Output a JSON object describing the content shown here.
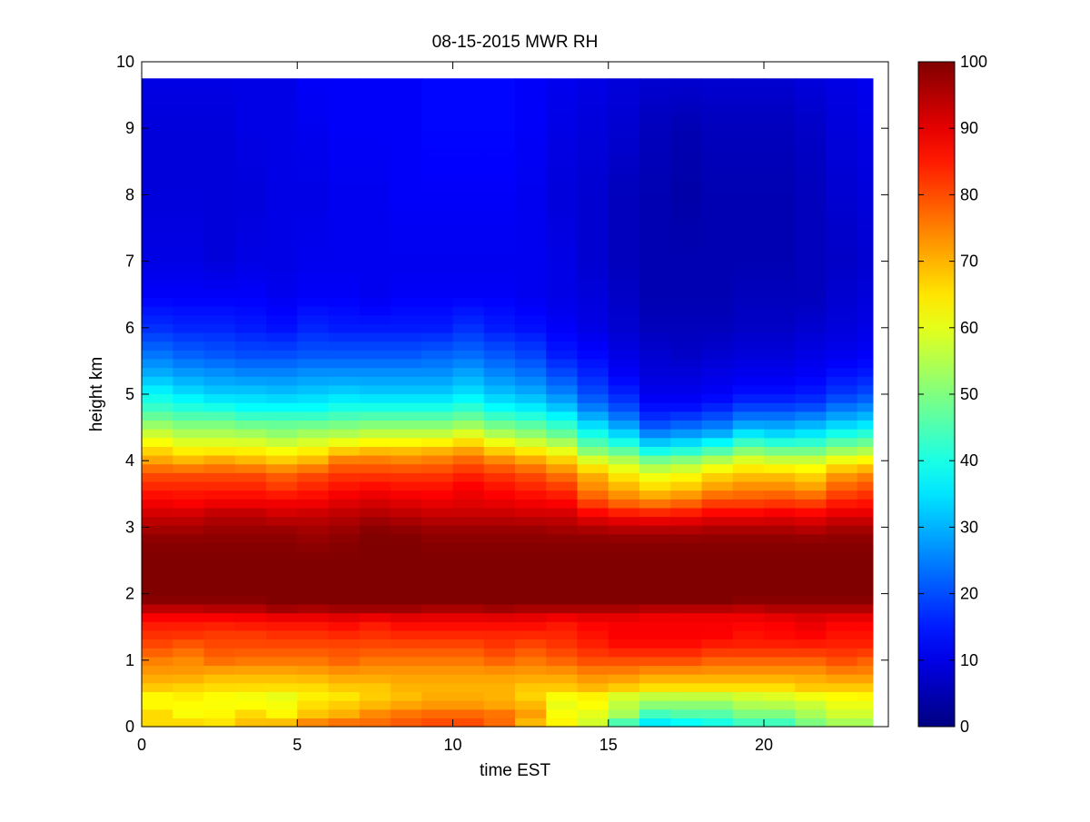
{
  "figure": {
    "background": "#ffffff"
  },
  "chart_data": {
    "type": "heatmap",
    "title": "08-15-2015 MWR RH",
    "xlabel": "time EST",
    "ylabel": "height km",
    "xlim": [
      0,
      24
    ],
    "ylim": [
      0,
      10
    ],
    "xticks": [
      0,
      5,
      10,
      15,
      20
    ],
    "yticks": [
      0,
      1,
      2,
      3,
      4,
      5,
      6,
      7,
      8,
      9,
      10
    ],
    "colorbar": {
      "min": 0,
      "max": 100,
      "ticks": [
        0,
        10,
        20,
        30,
        40,
        50,
        60,
        70,
        80,
        90,
        100
      ],
      "colormap": "jet"
    },
    "grid": false,
    "time_edges": [
      0,
      1,
      2,
      3,
      4,
      5,
      6,
      7,
      8,
      9,
      10,
      11,
      12,
      13,
      14,
      15,
      16,
      17,
      18,
      19,
      20,
      21,
      22,
      23,
      23.5
    ],
    "height_profile_km": [
      0,
      0.1,
      0.2,
      0.3,
      0.4,
      0.5,
      0.6,
      0.8,
      1.0,
      1.2,
      1.4,
      1.6,
      1.7,
      1.8,
      1.9,
      2.0,
      2.5,
      2.8,
      3.0,
      3.2,
      3.4,
      3.6,
      3.8,
      4.0,
      4.2,
      4.4,
      4.6,
      4.8,
      5.0,
      5.3,
      5.6,
      6.0,
      6.5,
      7.0,
      8.0,
      9.0,
      9.75
    ],
    "rh_profiles": [
      [
        62,
        68,
        66,
        63,
        63,
        63,
        68,
        72,
        75,
        80,
        83,
        86,
        90,
        95,
        99,
        100,
        100,
        99,
        96,
        92,
        88,
        84,
        80,
        72,
        65,
        58,
        50,
        43,
        38,
        30,
        24,
        17,
        12,
        10,
        9,
        9,
        10
      ],
      [
        70,
        64,
        62,
        62,
        64,
        64,
        67,
        72,
        74,
        78,
        83,
        86,
        90,
        95,
        99,
        100,
        100,
        99,
        96,
        92,
        87,
        84,
        80,
        70,
        62,
        55,
        48,
        41,
        35,
        28,
        22,
        16,
        12,
        10,
        9,
        9,
        10
      ],
      [
        63,
        66,
        63,
        62,
        62,
        63,
        66,
        70,
        77,
        80,
        82,
        86,
        90,
        96,
        99,
        100,
        100,
        99,
        97,
        94,
        88,
        84,
        80,
        72,
        62,
        55,
        48,
        40,
        33,
        27,
        21,
        16,
        12,
        9,
        9,
        9,
        10
      ],
      [
        62,
        72,
        66,
        63,
        61,
        62,
        66,
        70,
        76,
        80,
        82,
        87,
        90,
        96,
        99,
        100,
        100,
        99,
        97,
        94,
        88,
        84,
        80,
        70,
        62,
        54,
        46,
        38,
        33,
        26,
        20,
        15,
        12,
        10,
        9,
        10,
        10
      ],
      [
        70,
        68,
        63,
        62,
        61,
        60,
        66,
        70,
        76,
        80,
        83,
        87,
        92,
        98,
        100,
        100,
        100,
        99,
        97,
        92,
        88,
        82,
        78,
        68,
        60,
        52,
        46,
        38,
        32,
        26,
        20,
        14,
        11,
        10,
        10,
        10,
        10
      ],
      [
        78,
        72,
        68,
        66,
        65,
        63,
        66,
        71,
        76,
        80,
        83,
        87,
        92,
        97,
        100,
        100,
        100,
        98,
        96,
        93,
        88,
        84,
        80,
        70,
        62,
        54,
        46,
        38,
        33,
        27,
        21,
        16,
        12,
        11,
        10,
        11,
        12
      ],
      [
        78,
        75,
        70,
        68,
        66,
        64,
        68,
        72,
        78,
        80,
        84,
        88,
        93,
        98,
        100,
        100,
        100,
        99,
        97,
        94,
        90,
        86,
        82,
        76,
        65,
        55,
        47,
        40,
        34,
        27,
        21,
        15,
        12,
        11,
        11,
        12,
        12
      ],
      [
        78,
        76,
        74,
        70,
        68,
        67,
        68,
        72,
        76,
        80,
        83,
        86,
        93,
        98,
        100,
        100,
        100,
        100,
        99,
        95,
        91,
        87,
        82,
        76,
        67,
        57,
        48,
        40,
        33,
        27,
        21,
        15,
        11,
        11,
        11,
        12,
        12
      ],
      [
        80,
        78,
        76,
        72,
        70,
        68,
        70,
        72,
        76,
        80,
        84,
        88,
        93,
        98,
        100,
        100,
        100,
        100,
        98,
        94,
        90,
        86,
        82,
        75,
        67,
        57,
        48,
        40,
        33,
        27,
        21,
        15,
        12,
        11,
        12,
        12,
        12
      ],
      [
        80,
        80,
        77,
        73,
        72,
        70,
        70,
        72,
        76,
        80,
        84,
        88,
        92,
        97,
        100,
        100,
        100,
        99,
        97,
        93,
        89,
        86,
        82,
        76,
        68,
        57,
        48,
        40,
        33,
        27,
        22,
        15,
        12,
        11,
        12,
        13,
        13
      ],
      [
        80,
        80,
        77,
        73,
        72,
        70,
        70,
        72,
        76,
        80,
        84,
        88,
        92,
        97,
        100,
        100,
        100,
        99,
        97,
        93,
        90,
        88,
        84,
        78,
        70,
        60,
        50,
        42,
        35,
        29,
        23,
        17,
        12,
        11,
        12,
        13,
        13
      ],
      [
        75,
        78,
        76,
        72,
        70,
        70,
        70,
        72,
        78,
        82,
        84,
        88,
        93,
        98,
        100,
        100,
        100,
        99,
        97,
        93,
        89,
        86,
        82,
        75,
        65,
        55,
        46,
        38,
        32,
        26,
        21,
        15,
        12,
        11,
        12,
        13,
        13
      ],
      [
        60,
        74,
        72,
        70,
        68,
        66,
        68,
        72,
        76,
        80,
        84,
        88,
        92,
        97,
        100,
        100,
        100,
        99,
        97,
        92,
        88,
        84,
        80,
        72,
        62,
        52,
        44,
        36,
        30,
        24,
        19,
        14,
        11,
        11,
        11,
        12,
        12
      ],
      [
        62,
        64,
        62,
        60,
        62,
        62,
        68,
        72,
        78,
        82,
        84,
        86,
        92,
        97,
        100,
        100,
        100,
        99,
        96,
        92,
        87,
        82,
        76,
        68,
        58,
        48,
        40,
        32,
        26,
        20,
        15,
        12,
        10,
        10,
        9,
        10,
        11
      ],
      [
        55,
        60,
        60,
        62,
        63,
        64,
        70,
        74,
        80,
        84,
        86,
        88,
        92,
        97,
        100,
        100,
        100,
        99,
        95,
        88,
        80,
        74,
        70,
        60,
        48,
        40,
        32,
        25,
        20,
        16,
        13,
        10,
        9,
        8,
        8,
        9,
        10
      ],
      [
        40,
        48,
        54,
        56,
        57,
        60,
        68,
        74,
        80,
        86,
        88,
        88,
        92,
        97,
        100,
        100,
        100,
        99,
        94,
        86,
        76,
        70,
        64,
        56,
        44,
        34,
        26,
        20,
        16,
        12,
        10,
        8,
        7,
        6,
        6,
        8,
        9
      ],
      [
        32,
        38,
        44,
        50,
        54,
        58,
        66,
        72,
        80,
        86,
        88,
        88,
        90,
        96,
        100,
        100,
        100,
        99,
        94,
        85,
        74,
        66,
        60,
        50,
        36,
        26,
        18,
        14,
        11,
        9,
        8,
        6,
        5,
        5,
        5,
        6,
        8
      ],
      [
        34,
        40,
        46,
        50,
        54,
        58,
        66,
        72,
        80,
        86,
        88,
        88,
        90,
        96,
        100,
        100,
        100,
        99,
        94,
        86,
        76,
        68,
        62,
        52,
        38,
        28,
        20,
        14,
        11,
        9,
        7,
        6,
        5,
        5,
        4,
        5,
        8
      ],
      [
        36,
        42,
        46,
        50,
        54,
        58,
        66,
        72,
        78,
        84,
        88,
        88,
        90,
        96,
        100,
        100,
        100,
        99,
        95,
        88,
        80,
        72,
        66,
        56,
        42,
        30,
        22,
        16,
        12,
        10,
        8,
        6,
        5,
        5,
        5,
        6,
        8
      ],
      [
        40,
        46,
        50,
        54,
        56,
        60,
        66,
        72,
        78,
        84,
        86,
        88,
        90,
        95,
        99,
        100,
        100,
        99,
        95,
        88,
        80,
        74,
        68,
        60,
        48,
        36,
        26,
        19,
        14,
        11,
        9,
        7,
        6,
        5,
        5,
        6,
        8
      ],
      [
        40,
        46,
        50,
        54,
        58,
        60,
        66,
        72,
        78,
        84,
        87,
        88,
        92,
        96,
        99,
        100,
        100,
        99,
        95,
        89,
        81,
        74,
        68,
        58,
        46,
        34,
        26,
        19,
        14,
        11,
        9,
        7,
        6,
        5,
        5,
        6,
        8
      ],
      [
        46,
        52,
        54,
        56,
        60,
        62,
        68,
        72,
        78,
        84,
        88,
        90,
        92,
        96,
        99,
        100,
        100,
        99,
        94,
        88,
        80,
        72,
        66,
        58,
        46,
        36,
        28,
        20,
        15,
        12,
        10,
        8,
        6,
        6,
        6,
        7,
        9
      ],
      [
        50,
        56,
        58,
        60,
        62,
        63,
        68,
        74,
        80,
        84,
        86,
        88,
        92,
        96,
        99,
        100,
        100,
        99,
        96,
        90,
        84,
        78,
        72,
        62,
        50,
        40,
        31,
        24,
        18,
        14,
        11,
        9,
        8,
        7,
        8,
        9,
        10
      ],
      [
        50,
        56,
        58,
        60,
        62,
        64,
        68,
        74,
        78,
        84,
        86,
        88,
        92,
        96,
        99,
        100,
        100,
        99,
        96,
        90,
        85,
        80,
        74,
        64,
        52,
        42,
        33,
        26,
        20,
        15,
        12,
        10,
        9,
        8,
        9,
        10,
        11
      ]
    ]
  }
}
